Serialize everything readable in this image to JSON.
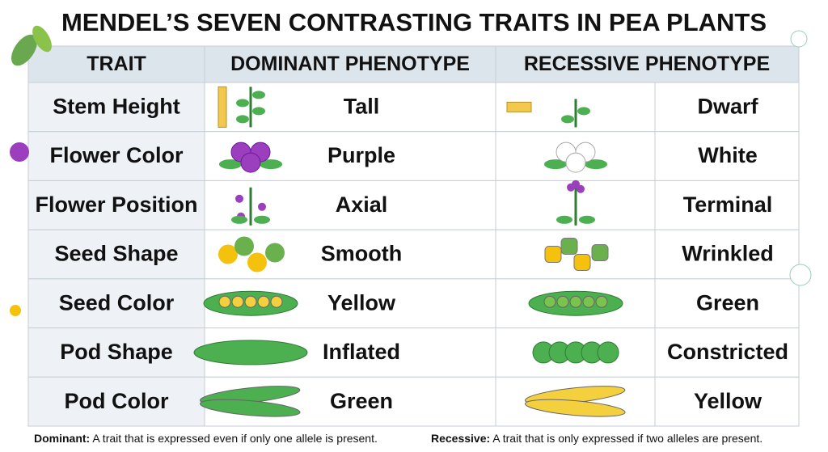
{
  "title": "MENDEL’S SEVEN CONTRASTING TRAITS IN PEA PLANTS",
  "table": {
    "header": [
      "TRAIT",
      "DOMINANT PHENOTYPE",
      "RECESSIVE PHENOTYPE"
    ],
    "rows": [
      [
        "Stem Height",
        "Tall",
        "Dwarf"
      ],
      [
        "Flower Color",
        "Purple",
        "White"
      ],
      [
        "Flower Position",
        "Axial",
        "Terminal"
      ],
      [
        "Seed Shape",
        "Smooth",
        "Wrinkled"
      ],
      [
        "Seed Color",
        "Yellow",
        "Green"
      ],
      [
        "Pod Shape",
        "Inflated",
        "Constricted"
      ],
      [
        "Pod Color",
        "Green",
        "Yellow"
      ]
    ]
  },
  "footer": [
    {
      "term": "Dominant:",
      "text": "A trait that is expressed even if only one allele is present."
    },
    {
      "term": "Recessive:",
      "text": "A trait that is only expressed if two alleles are present."
    }
  ]
}
